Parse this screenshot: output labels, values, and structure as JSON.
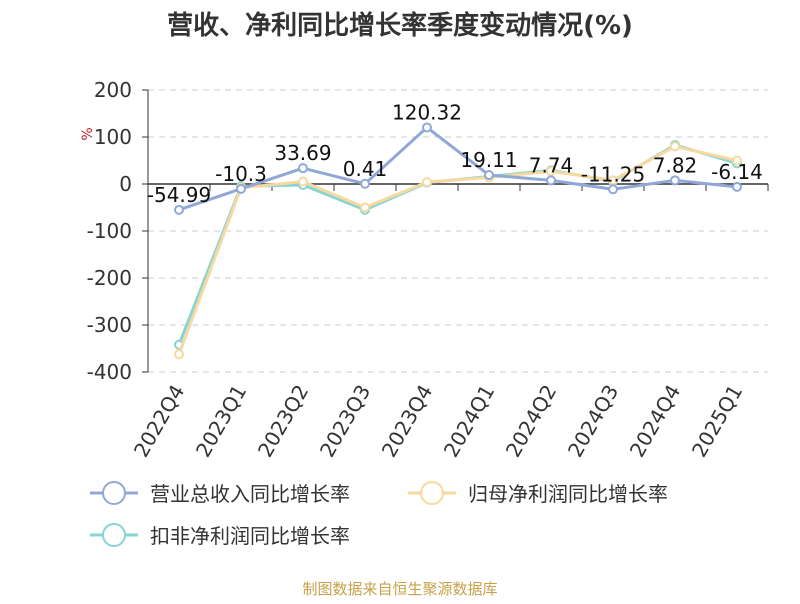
{
  "chart_data": {
    "type": "line",
    "title": "营收、净利同比增长率季度变动情况(%)",
    "ylabel": "%",
    "ylim": [
      -400,
      200
    ],
    "yticks": [
      200,
      100,
      0,
      -100,
      -200,
      -300,
      -400
    ],
    "categories": [
      "2022Q4",
      "2023Q1",
      "2023Q2",
      "2023Q3",
      "2023Q4",
      "2024Q1",
      "2024Q2",
      "2024Q3",
      "2024Q4",
      "2025Q1"
    ],
    "series": [
      {
        "name": "营业总收入同比增长率",
        "color": "#8fa8d8",
        "values": [
          -54.99,
          -10.3,
          33.69,
          0.41,
          120.32,
          19.11,
          7.74,
          -11.25,
          7.82,
          -6.14
        ],
        "labels": [
          "-54.99",
          "-10.3",
          "33.69",
          "0.41",
          "120.32",
          "19.11",
          "7.74",
          "-11.25",
          "7.82",
          "-6.14"
        ]
      },
      {
        "name": "归母净利润同比增长率",
        "color": "#f7d9a0",
        "values": [
          -362,
          -8,
          5,
          -50,
          4,
          14,
          27,
          8,
          80,
          50
        ]
      },
      {
        "name": "扣非净利润同比增长率",
        "color": "#86d4d4",
        "values": [
          -342,
          -5,
          -2,
          -55,
          3,
          16,
          29,
          6,
          83,
          44
        ]
      }
    ],
    "grid": true,
    "legend_position": "bottom"
  },
  "source_text": "制图数据来自恒生聚源数据库"
}
